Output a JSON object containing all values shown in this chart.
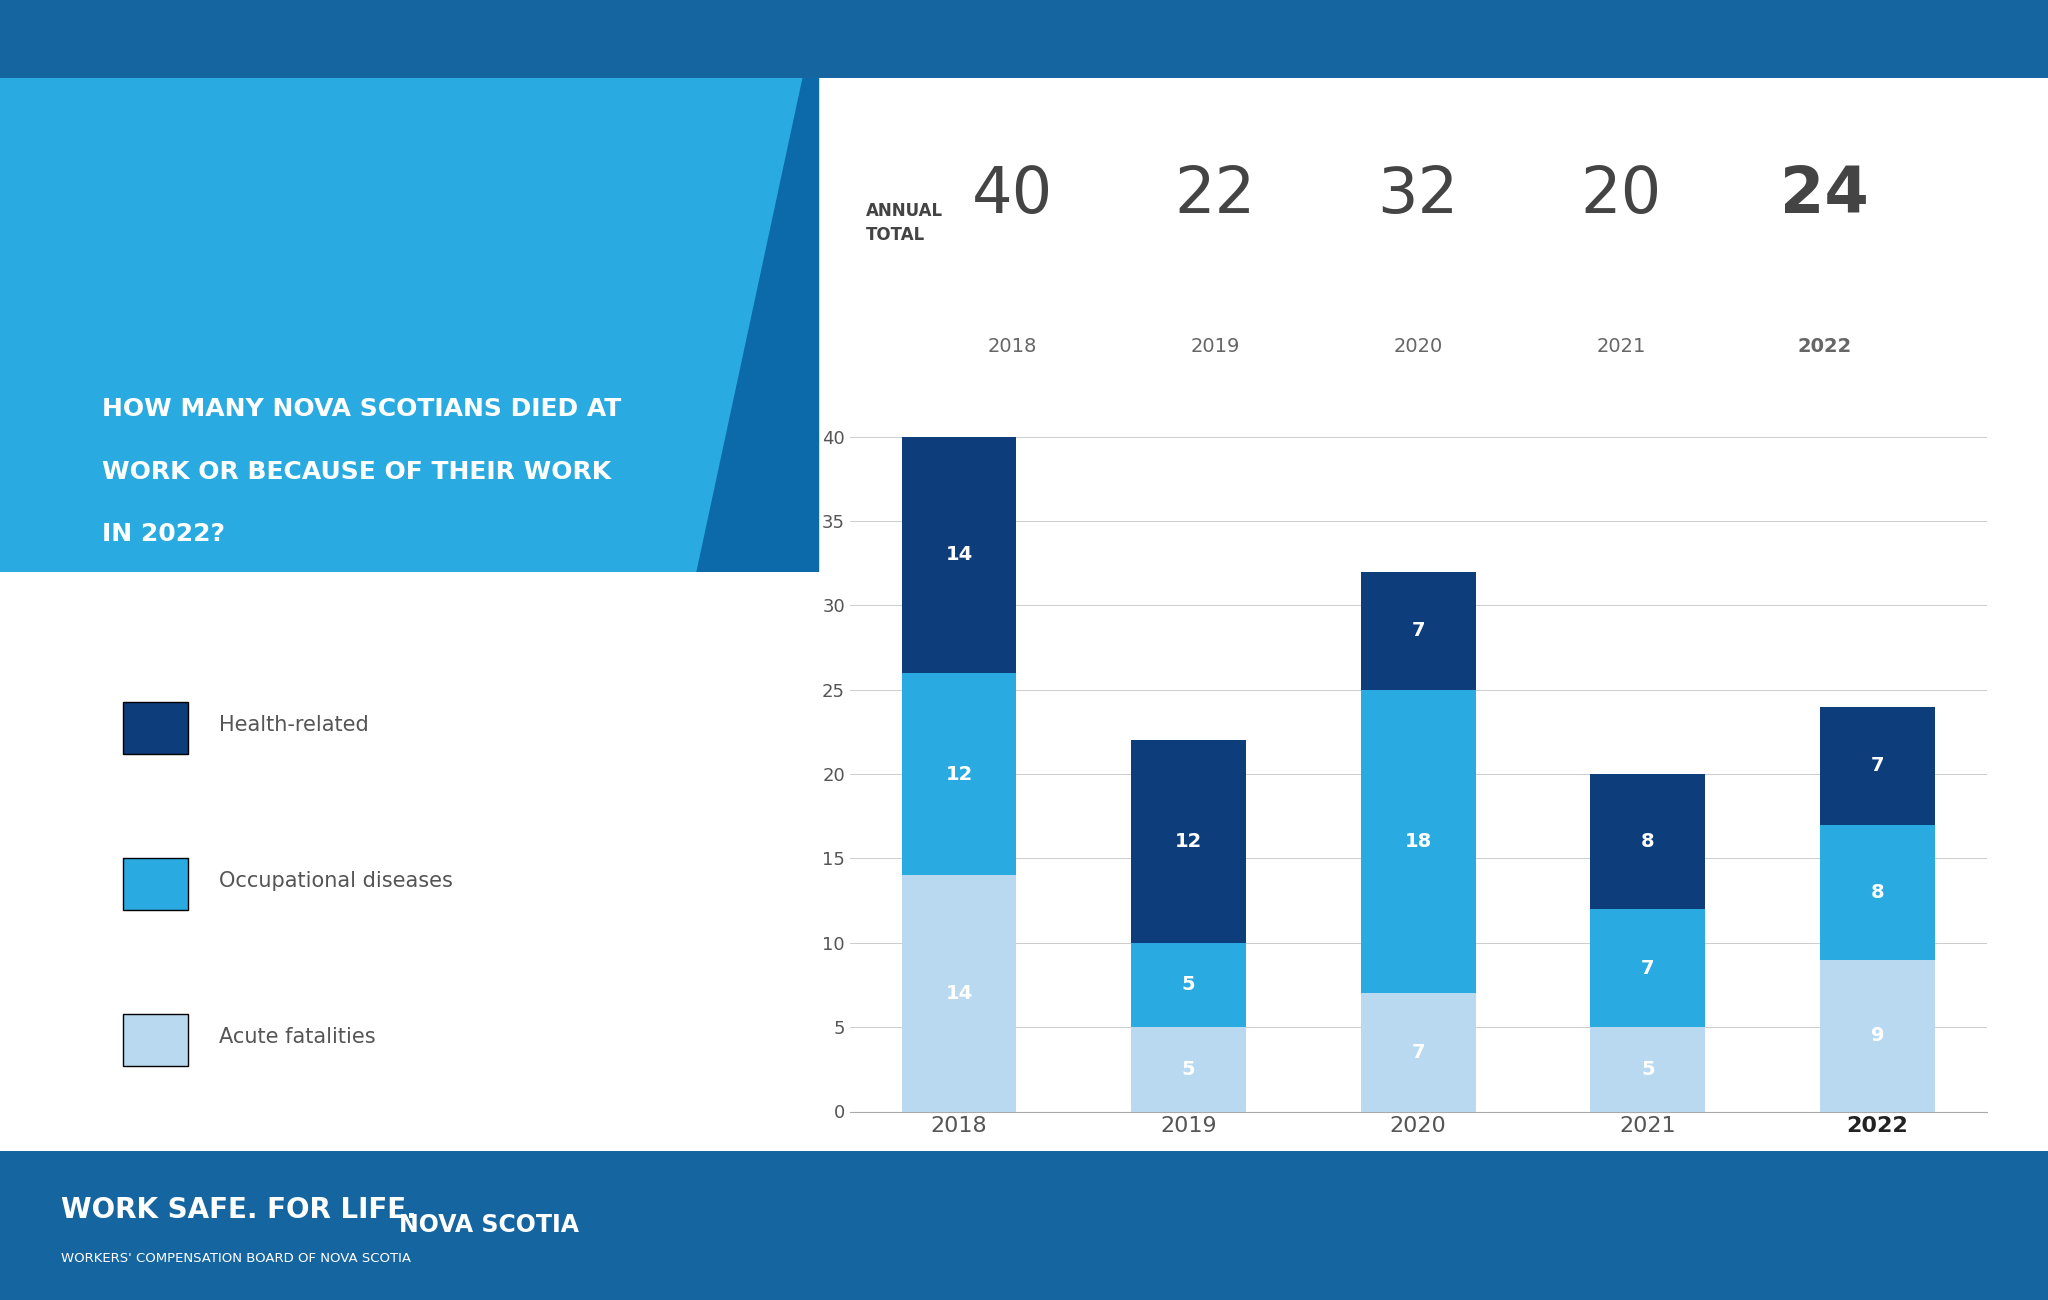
{
  "years": [
    "2018",
    "2019",
    "2020",
    "2021",
    "2022"
  ],
  "annual_totals": [
    40,
    22,
    32,
    20,
    24
  ],
  "acute_fatalities": [
    14,
    5,
    7,
    5,
    9
  ],
  "occupational_diseases": [
    12,
    5,
    18,
    7,
    8
  ],
  "health_related": [
    14,
    12,
    7,
    8,
    7
  ],
  "color_acute": "#b8d9f0",
  "color_occ": "#29abe2",
  "color_health": "#0d3d7a",
  "bg_color": "#ffffff",
  "footer_bg": "#1565a0",
  "blue_shape_color": "#29abe2",
  "dark_blue_corner": "#0d6aaa",
  "title_text_line1": "HOW MANY NOVA SCOTIANS DIED AT",
  "title_text_line2": "WORK OR BECAUSE OF THEIR WORK",
  "title_text_line3": "IN 2022?",
  "annual_total_label": "ANNUAL\nTOTAL",
  "legend_labels": [
    "Health-related",
    "Occupational diseases",
    "Acute fatalities"
  ],
  "legend_colors": [
    "#0d3d7a",
    "#29abe2",
    "#b8d9f0"
  ],
  "ylim": [
    0,
    42
  ],
  "yticks": [
    0,
    5,
    10,
    15,
    20,
    25,
    30,
    35,
    40
  ],
  "bar_width": 0.5,
  "footer_text1": "WORK SAFE. FOR LIFE.",
  "footer_text2": "WORKERS' COMPENSATION BOARD OF NOVA SCOTIA",
  "footer_logo": "NOVA SCOTIA"
}
